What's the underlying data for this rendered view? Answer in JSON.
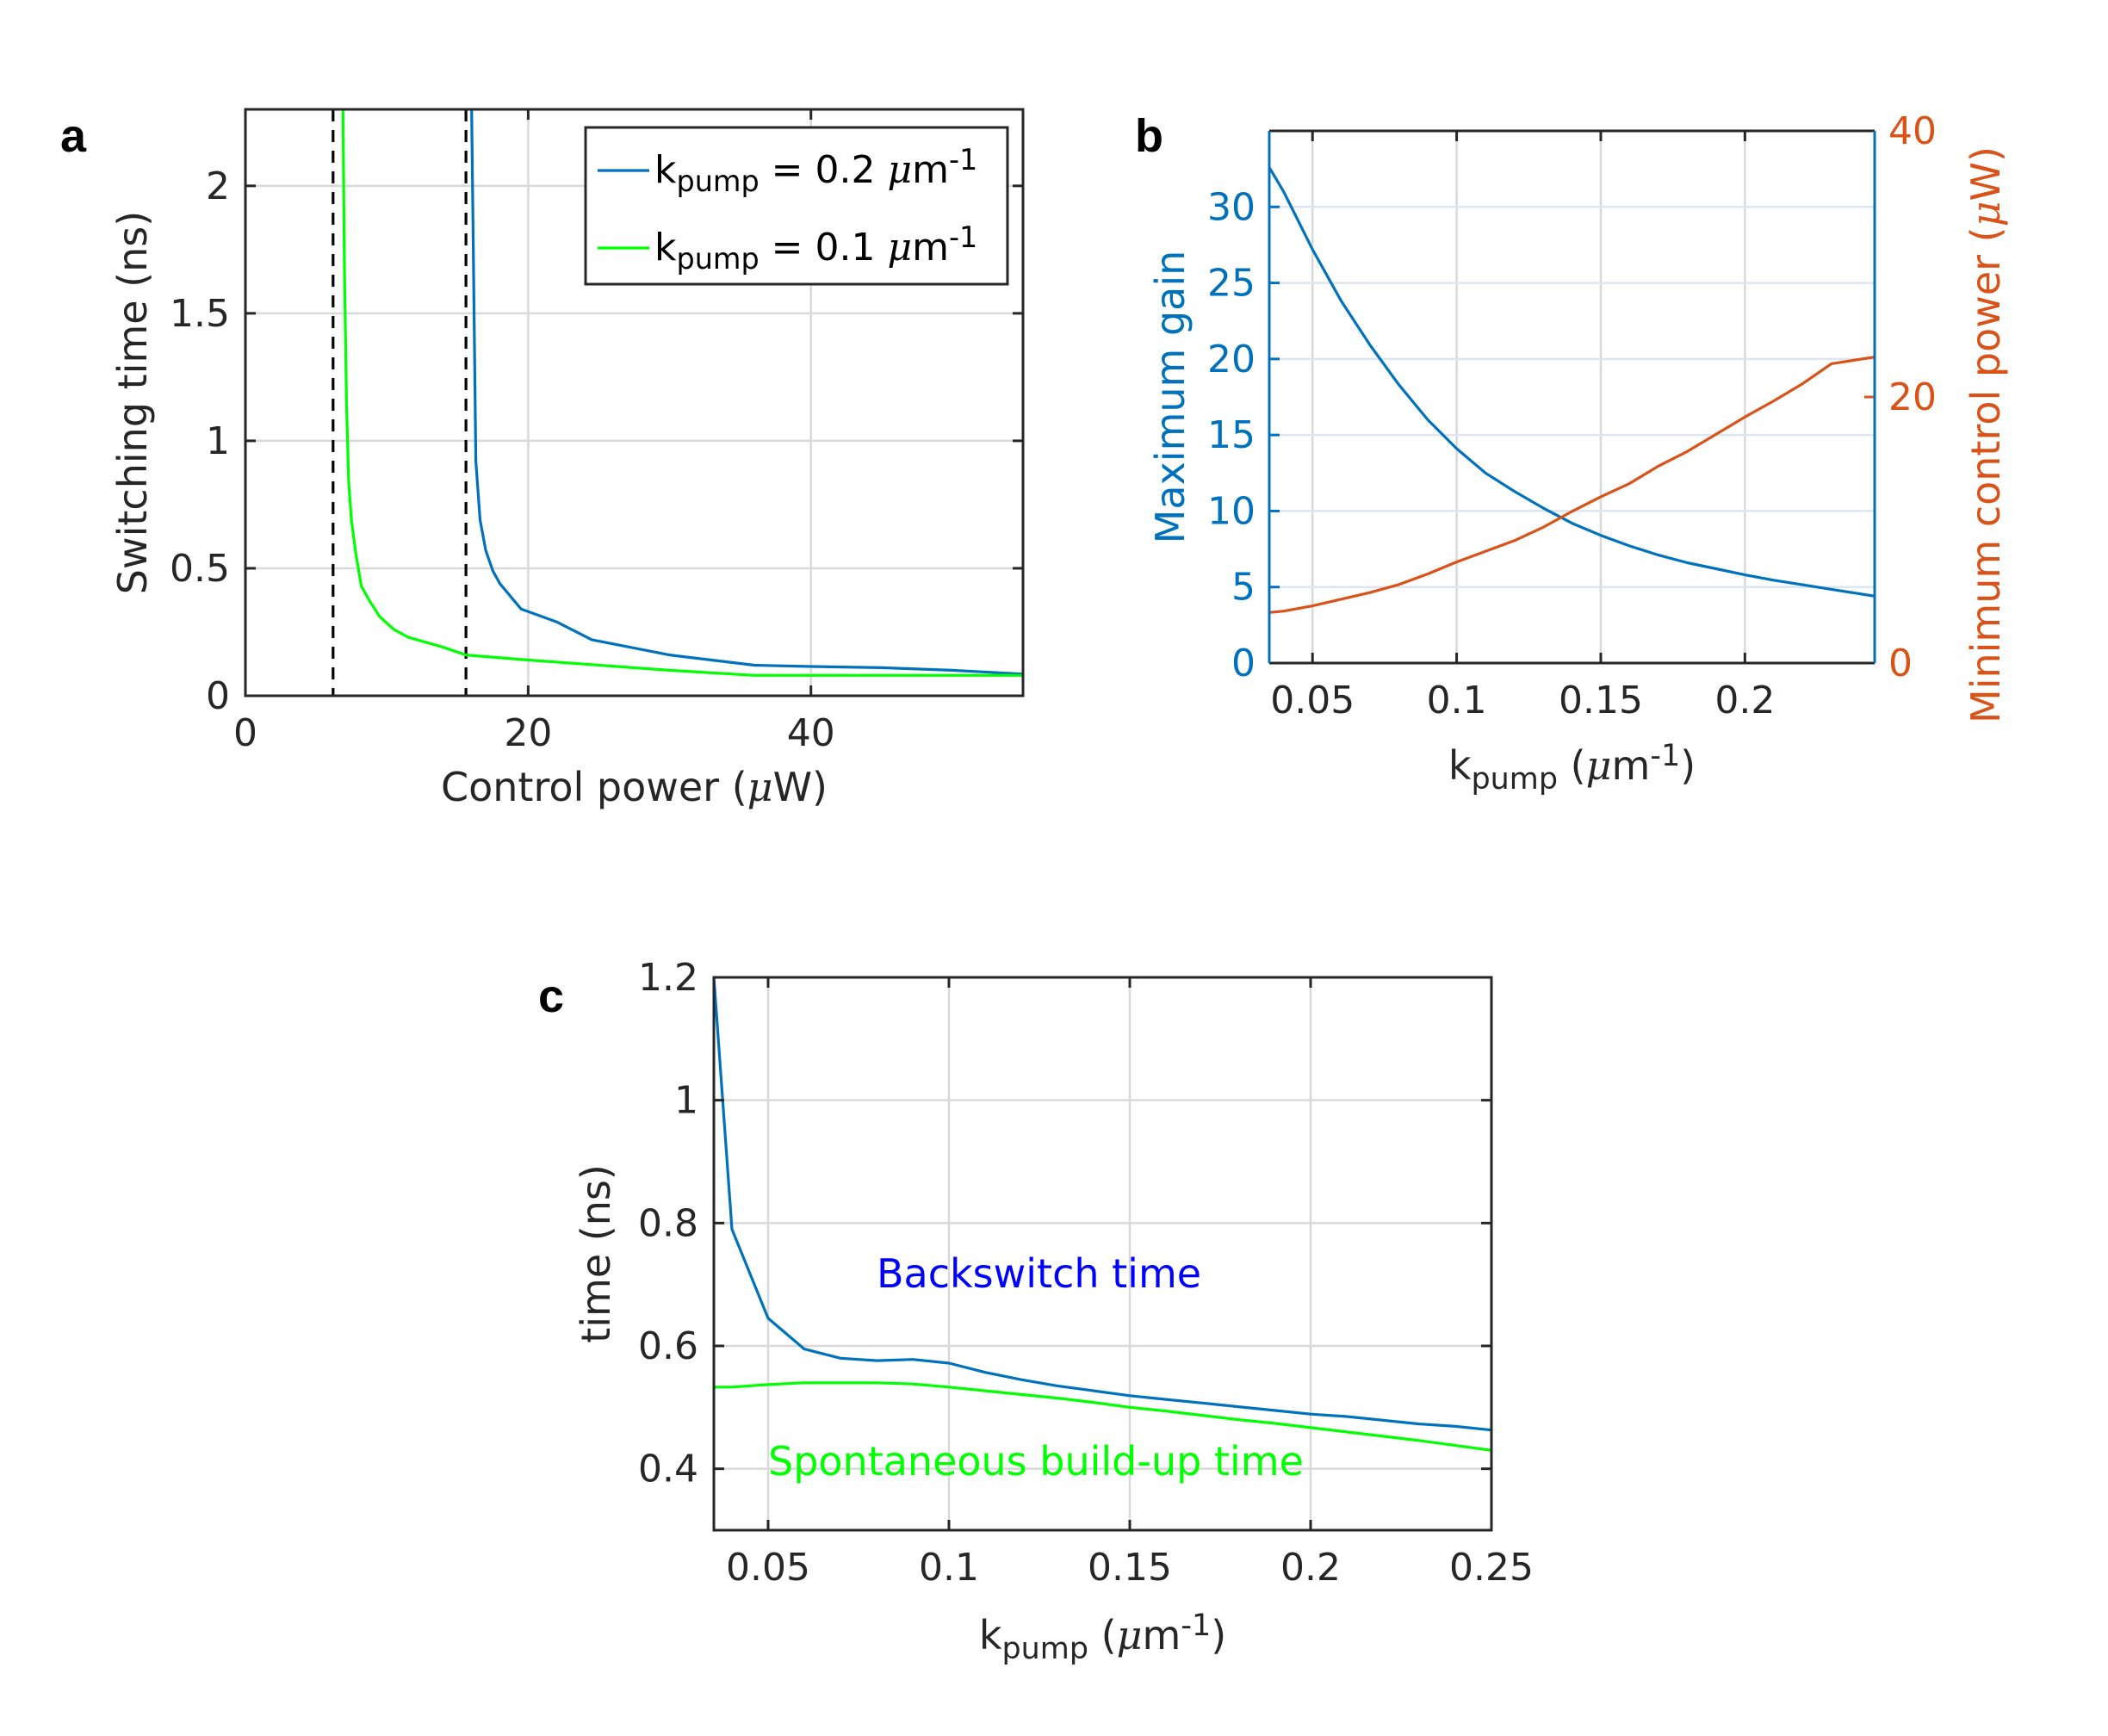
{
  "colors": {
    "blue": "#0072BD",
    "green": "#00FF00",
    "orange": "#D95319",
    "annot_blue": "#0000FF"
  },
  "chart_data": [
    {
      "panel": "a",
      "type": "line",
      "xlabel_parts": [
        "Control power (",
        "μ",
        "W)"
      ],
      "ylabel": "Switching time (ns)",
      "xlim": [
        0,
        55
      ],
      "ylim": [
        0,
        2.3
      ],
      "xticks": [
        0,
        20,
        40
      ],
      "yticks": [
        0,
        0.5,
        1,
        1.5,
        2
      ],
      "xtick_labels": [
        "0",
        "20",
        "40"
      ],
      "ytick_labels": [
        "0",
        "0.5",
        "1",
        "1.5",
        "2"
      ],
      "grid": true,
      "legend_position": "top-right",
      "vlines": [
        6.2,
        15.6
      ],
      "series": [
        {
          "name": "k_pump = 0.2 μm-1",
          "legend_parts": [
            "k",
            "pump",
            " = 0.2 ",
            "μ",
            "m",
            "-1"
          ],
          "color": "#0072BD",
          "x": [
            16.0,
            16.3,
            16.6,
            17.0,
            17.5,
            18.0,
            18.6,
            19.5,
            22,
            24.5,
            30,
            36,
            40,
            45,
            50,
            55
          ],
          "y": [
            2.3,
            0.92,
            0.69,
            0.57,
            0.49,
            0.44,
            0.4,
            0.34,
            0.29,
            0.22,
            0.16,
            0.12,
            0.115,
            0.11,
            0.1,
            0.085
          ]
        },
        {
          "name": "k_pump = 0.1 μm-1",
          "legend_parts": [
            "k",
            "pump",
            " = 0.1 ",
            "μ",
            "m",
            "-1"
          ],
          "color": "#00FF00",
          "x": [
            6.9,
            7.0,
            7.15,
            7.3,
            7.5,
            7.8,
            8.2,
            8.8,
            9.5,
            10.5,
            11.5,
            14,
            15.6,
            20,
            30,
            36,
            45,
            55
          ],
          "y": [
            2.3,
            1.7,
            1.15,
            0.84,
            0.69,
            0.56,
            0.43,
            0.37,
            0.31,
            0.26,
            0.23,
            0.19,
            0.16,
            0.14,
            0.1,
            0.08,
            0.08,
            0.08
          ]
        }
      ]
    },
    {
      "panel": "b",
      "type": "line",
      "xlabel_parts": [
        "k",
        "pump",
        " (",
        "μ",
        "m",
        "-1",
        ")"
      ],
      "ylabel_left": "Maximum gain",
      "ylabel_right_parts": [
        "Minimum control power (",
        "μ",
        "W)"
      ],
      "xlim": [
        0.035,
        0.245
      ],
      "ylim_left": [
        0,
        35
      ],
      "ylim_right": [
        0,
        40
      ],
      "xticks": [
        0.05,
        0.1,
        0.15,
        0.2
      ],
      "xtick_labels": [
        "0.05",
        "0.1",
        "0.15",
        "0.2"
      ],
      "yticks_left": [
        0,
        5,
        10,
        15,
        20,
        25,
        30
      ],
      "ytick_labels_left": [
        "0",
        "5",
        "10",
        "15",
        "20",
        "25",
        "30"
      ],
      "yticks_right": [
        0,
        20,
        40
      ],
      "ytick_labels_right": [
        "0",
        "20",
        "40"
      ],
      "grid": true,
      "series": [
        {
          "name": "Maximum gain",
          "axis": "left",
          "color": "#0072BD",
          "x": [
            0.035,
            0.04,
            0.05,
            0.06,
            0.07,
            0.08,
            0.09,
            0.1,
            0.11,
            0.12,
            0.13,
            0.14,
            0.15,
            0.16,
            0.17,
            0.18,
            0.19,
            0.2,
            0.21,
            0.22,
            0.23,
            0.245
          ],
          "y": [
            32.6,
            31.0,
            27.2,
            23.8,
            20.9,
            18.3,
            16.0,
            14.1,
            12.5,
            11.3,
            10.2,
            9.2,
            8.4,
            7.7,
            7.1,
            6.6,
            6.2,
            5.8,
            5.45,
            5.15,
            4.85,
            4.4
          ]
        },
        {
          "name": "Minimum control power",
          "axis": "right",
          "color": "#D95319",
          "x": [
            0.035,
            0.04,
            0.05,
            0.06,
            0.07,
            0.08,
            0.09,
            0.1,
            0.11,
            0.12,
            0.13,
            0.14,
            0.15,
            0.16,
            0.17,
            0.18,
            0.19,
            0.2,
            0.21,
            0.22,
            0.23,
            0.245
          ],
          "y": [
            3.8,
            3.9,
            4.3,
            4.8,
            5.3,
            5.9,
            6.7,
            7.6,
            8.4,
            9.2,
            10.2,
            11.4,
            12.5,
            13.5,
            14.8,
            15.9,
            17.2,
            18.5,
            19.7,
            21.0,
            22.5,
            23.0
          ]
        }
      ]
    },
    {
      "panel": "c",
      "type": "line",
      "xlabel_parts": [
        "k",
        "pump",
        " (",
        "μ",
        "m",
        "-1",
        ")"
      ],
      "ylabel": "time (ns)",
      "xlim": [
        0.035,
        0.25
      ],
      "ylim": [
        0.3,
        1.2
      ],
      "xticks": [
        0.05,
        0.1,
        0.15,
        0.2,
        0.25
      ],
      "xtick_labels": [
        "0.05",
        "0.1",
        "0.15",
        "0.2",
        "0.25"
      ],
      "yticks": [
        0.4,
        0.6,
        0.8,
        1.0,
        1.2
      ],
      "ytick_labels": [
        "0.4",
        "0.6",
        "0.8",
        "1",
        "1.2"
      ],
      "grid": true,
      "annotations": [
        {
          "text": "Backswitch time",
          "x": 0.08,
          "y": 0.695,
          "color": "#0000FF"
        },
        {
          "text": "Spontaneous build-up time",
          "x": 0.05,
          "y": 0.39,
          "color": "#00FF00"
        }
      ],
      "series": [
        {
          "name": "Backswitch time",
          "color": "#0072BD",
          "x": [
            0.035,
            0.04,
            0.05,
            0.06,
            0.07,
            0.08,
            0.09,
            0.1,
            0.11,
            0.12,
            0.13,
            0.14,
            0.15,
            0.16,
            0.17,
            0.18,
            0.19,
            0.2,
            0.21,
            0.22,
            0.23,
            0.24,
            0.25
          ],
          "y": [
            1.2,
            0.79,
            0.645,
            0.595,
            0.58,
            0.576,
            0.578,
            0.572,
            0.557,
            0.545,
            0.535,
            0.527,
            0.519,
            0.513,
            0.507,
            0.501,
            0.495,
            0.489,
            0.485,
            0.479,
            0.473,
            0.469,
            0.463
          ]
        },
        {
          "name": "Spontaneous build-up time",
          "color": "#00FF00",
          "x": [
            0.035,
            0.04,
            0.05,
            0.06,
            0.07,
            0.08,
            0.09,
            0.1,
            0.11,
            0.12,
            0.13,
            0.14,
            0.15,
            0.16,
            0.17,
            0.18,
            0.19,
            0.2,
            0.21,
            0.22,
            0.23,
            0.24,
            0.25
          ],
          "y": [
            0.533,
            0.533,
            0.537,
            0.54,
            0.54,
            0.54,
            0.538,
            0.533,
            0.527,
            0.521,
            0.515,
            0.508,
            0.5,
            0.494,
            0.487,
            0.48,
            0.474,
            0.467,
            0.46,
            0.453,
            0.446,
            0.438,
            0.43
          ]
        }
      ]
    }
  ],
  "panel_labels": [
    "a",
    "b",
    "c"
  ]
}
